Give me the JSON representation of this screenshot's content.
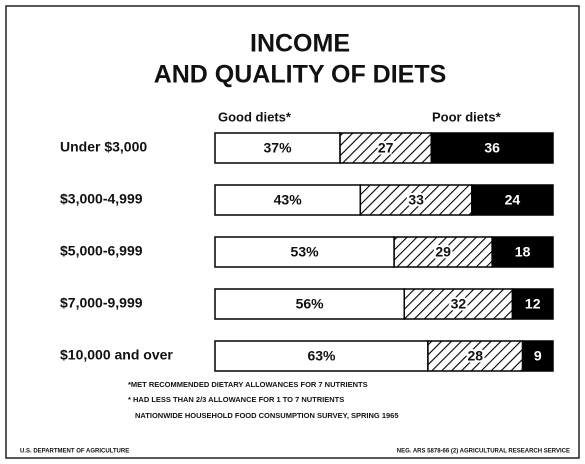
{
  "chart_data": {
    "type": "stacked-bar-horizontal",
    "title": [
      "INCOME",
      "AND QUALITY OF DIETS"
    ],
    "categories": [
      "Under $3,000",
      "$3,000-4,999",
      "$5,000-6,999",
      "$7,000-9,999",
      "$10,000 and over"
    ],
    "series": [
      {
        "name": "Good diets*",
        "color": "#ffffff",
        "values": [
          37,
          43,
          53,
          56,
          63
        ],
        "value_labels": [
          "37%",
          "43%",
          "53%",
          "56%",
          "63%"
        ]
      },
      {
        "color": "hatch",
        "values": [
          27,
          33,
          29,
          32,
          28
        ]
      },
      {
        "name": "Poor diets*",
        "color": "#000000",
        "values": [
          36,
          24,
          18,
          12,
          9
        ]
      }
    ],
    "footnotes": [
      "*MET RECOMMENDED DIETARY ALLOWANCES FOR 7 NUTRIENTS",
      "* HAD LESS THAN 2/3 ALLOWANCE FOR 1 TO 7 NUTRIENTS",
      "NATIONWIDE HOUSEHOLD FOOD CONSUMPTION SURVEY, SPRING 1965"
    ],
    "source_left": "U.S. DEPARTMENT OF AGRICULTURE",
    "source_right": "NEG. ARS 5878-66 (2) AGRICULTURAL RESEARCH SERVICE"
  }
}
